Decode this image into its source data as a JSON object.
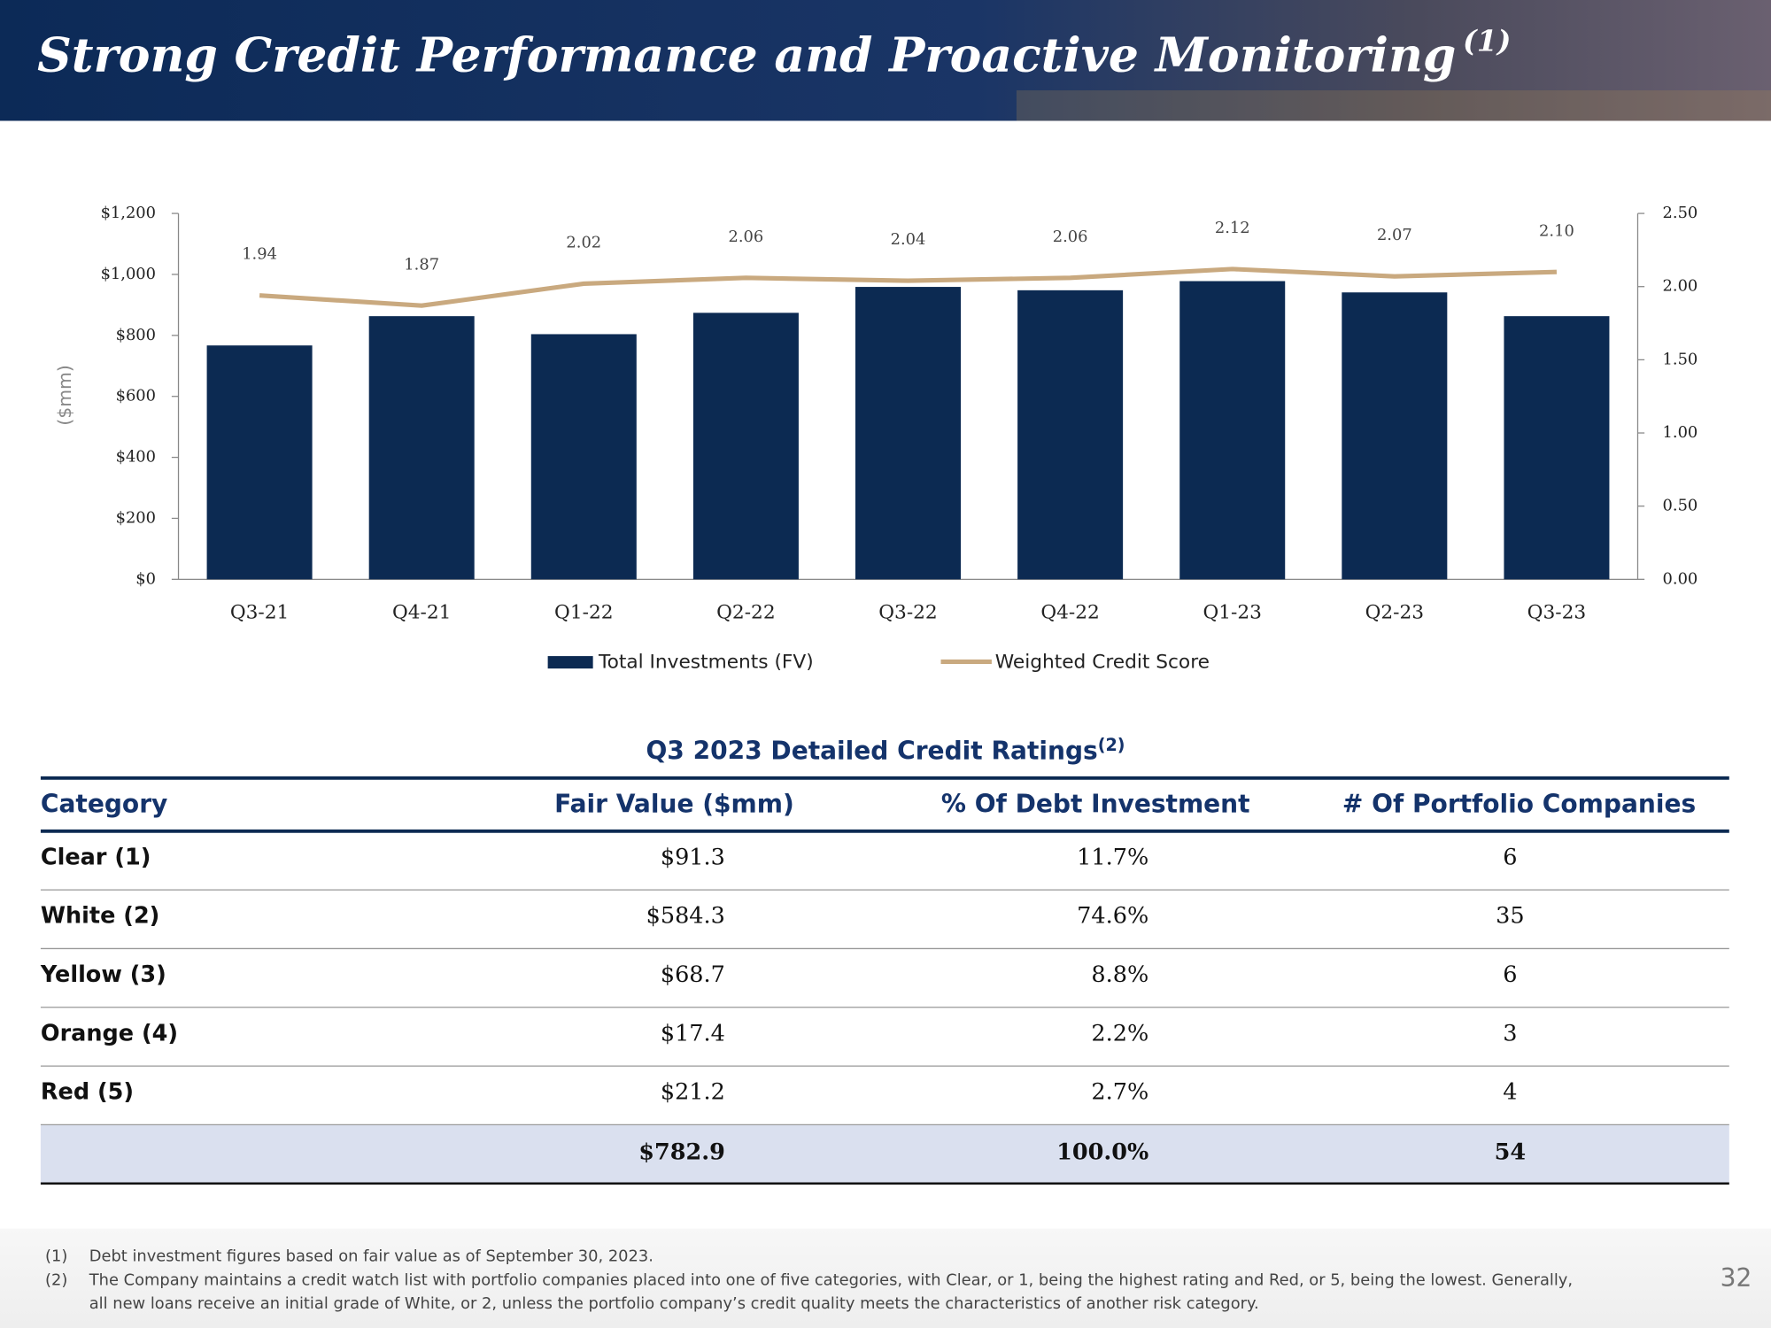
{
  "header": {
    "title": "Strong Credit Performance and Proactive Monitoring",
    "title_note": "(1)"
  },
  "chart_data": {
    "type": "bar",
    "y_label": "($mm)",
    "categories": [
      "Q3-21",
      "Q4-21",
      "Q1-22",
      "Q2-22",
      "Q3-22",
      "Q4-22",
      "Q1-23",
      "Q2-23",
      "Q3-23"
    ],
    "series": [
      {
        "name": "Total Investments (FV)",
        "type": "bar",
        "color": "#0c2a52",
        "axis": "y",
        "values": [
          767,
          863,
          804,
          874,
          959,
          948,
          978,
          941,
          863
        ]
      },
      {
        "name": "Weighted Credit Score",
        "type": "line",
        "color": "#c9a97f",
        "axis": "y2",
        "values": [
          1.94,
          1.87,
          2.02,
          2.06,
          2.04,
          2.06,
          2.12,
          2.07,
          2.1
        ],
        "value_labels": [
          "1.94",
          "1.87",
          "2.02",
          "2.06",
          "2.04",
          "2.06",
          "2.12",
          "2.07",
          "2.10"
        ]
      }
    ],
    "ylim": [
      0,
      1200
    ],
    "yticks": [
      {
        "value": 0,
        "label": "$0"
      },
      {
        "value": 200,
        "label": "$200"
      },
      {
        "value": 400,
        "label": "$400"
      },
      {
        "value": 600,
        "label": "$600"
      },
      {
        "value": 800,
        "label": "$800"
      },
      {
        "value": 1000,
        "label": "$1,000"
      },
      {
        "value": 1200,
        "label": "$1,200"
      }
    ],
    "y2lim": [
      0,
      2.5
    ],
    "y2ticks": [
      {
        "value": 0,
        "label": "0.00"
      },
      {
        "value": 0.5,
        "label": "0.50"
      },
      {
        "value": 1,
        "label": "1.00"
      },
      {
        "value": 1.5,
        "label": "1.50"
      },
      {
        "value": 2,
        "label": "2.00"
      },
      {
        "value": 2.5,
        "label": "2.50"
      }
    ],
    "grid": false,
    "legend": "bottom"
  },
  "table": {
    "title": "Q3 2023 Detailed Credit Ratings",
    "title_note": "(2)",
    "columns": [
      "Category",
      "Fair Value ($mm)",
      "% Of Debt Investment",
      "# Of Portfolio Companies"
    ],
    "rows": [
      [
        "Clear (1)",
        "$91.3",
        "11.7%",
        "6"
      ],
      [
        "White (2)",
        "$584.3",
        "74.6%",
        "35"
      ],
      [
        "Yellow (3)",
        "$68.7",
        "8.8%",
        "6"
      ],
      [
        "Orange (4)",
        "$17.4",
        "2.2%",
        "3"
      ],
      [
        "Red (5)",
        "$21.2",
        "2.7%",
        "4"
      ]
    ],
    "total": [
      "$782.9",
      "100.0%",
      "54"
    ]
  },
  "footnotes": [
    {
      "marker": "(1)",
      "lines": [
        "Debt investment figures based on fair value as of September 30, 2023."
      ]
    },
    {
      "marker": "(2)",
      "lines": [
        "The Company maintains a credit watch list with portfolio companies placed into one of five categories, with Clear, or 1, being the highest rating and Red, or 5, being the lowest. Generally,",
        "all new loans receive an initial grade of White, or 2, unless the portfolio company’s credit quality meets the characteristics of another risk category."
      ]
    }
  ],
  "page_number": "32"
}
